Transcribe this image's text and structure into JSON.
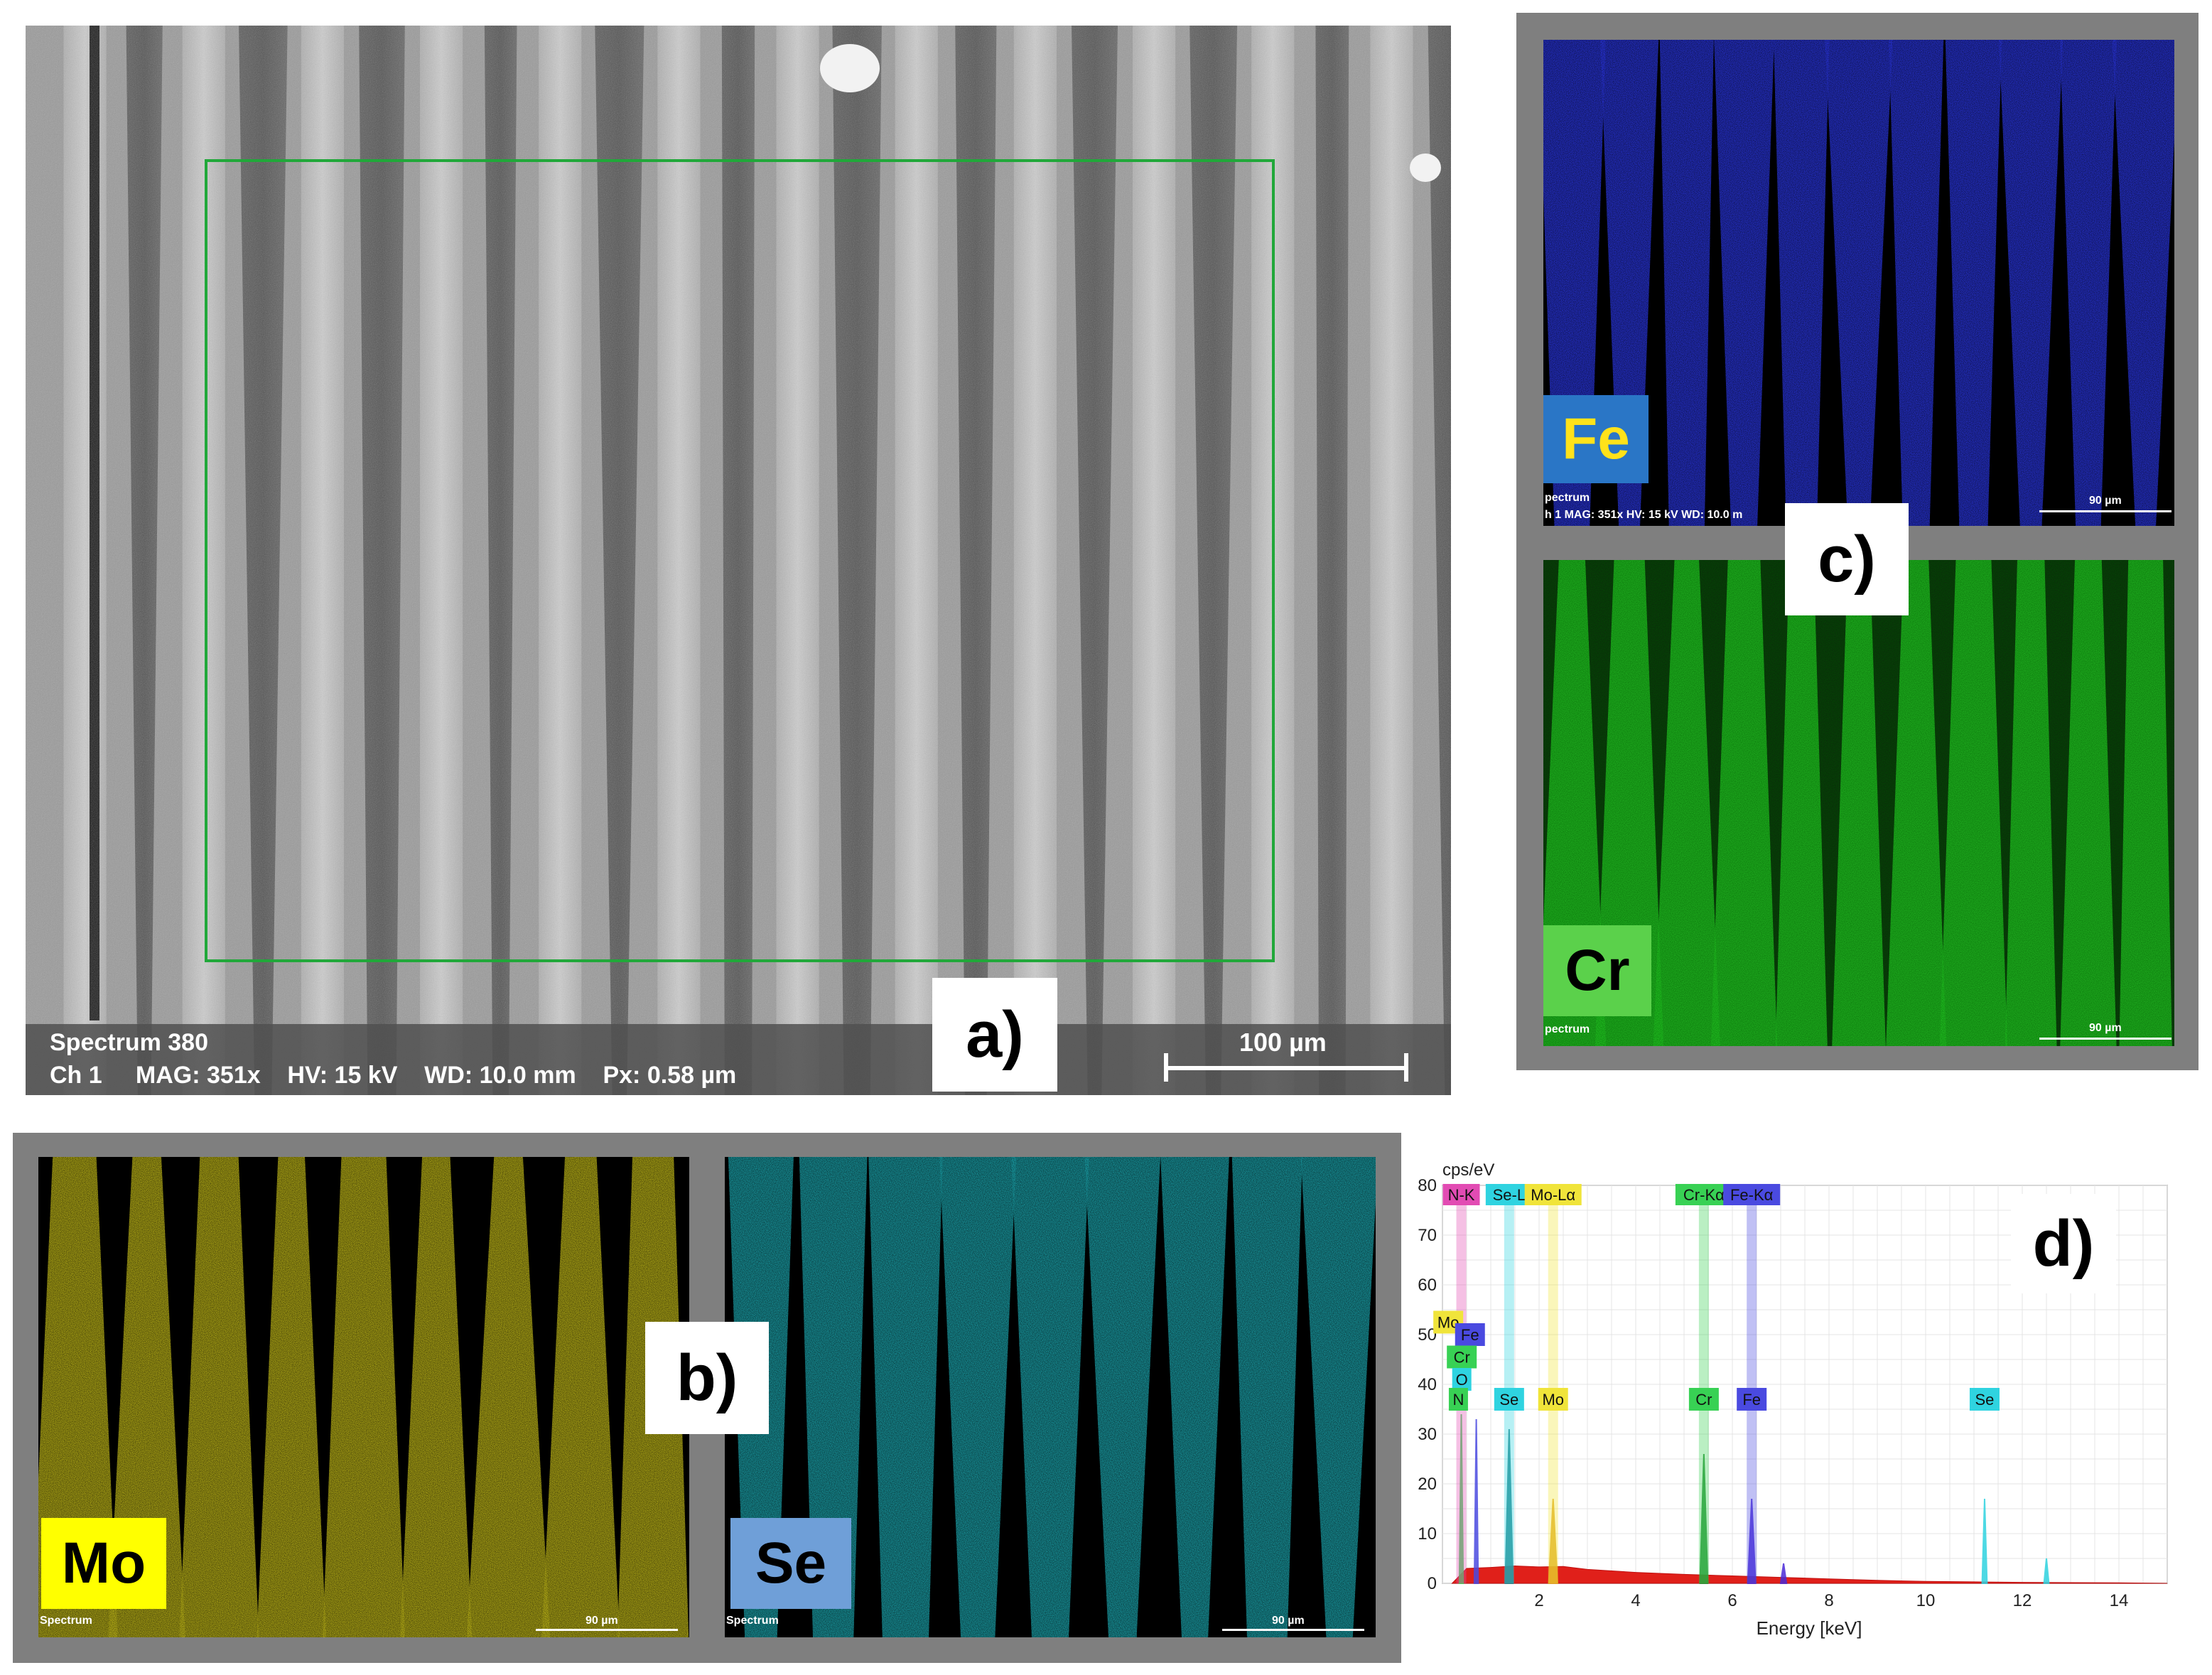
{
  "panel_a": {
    "label": "a)",
    "spectrum": "Spectrum 380",
    "info": "Ch 1     MAG: 351x    HV: 15 kV    WD: 10.0 mm    Px: 0.58 µm",
    "scale": "100 µm",
    "roi_color": "#21a83a"
  },
  "panel_c": {
    "label": "c)",
    "fe": {
      "element": "Fe",
      "color": "#2f3dff",
      "tag_bg": "#2a76c6",
      "tag_fg": "#ffe21a",
      "footer1": "pectrum",
      "footer2": "h 1   MAG: 351x   HV: 15 kV   WD: 10.0 m",
      "scale": "90 µm"
    },
    "cr": {
      "element": "Cr",
      "color": "#25c525",
      "tag_bg": "#5bd14b",
      "tag_fg": "#000000",
      "footer1": "pectrum",
      "scale": "90 µm"
    }
  },
  "panel_b": {
    "label": "b)",
    "mo": {
      "element": "Mo",
      "color": "#ddd31b",
      "tag_bg": "#ffff00",
      "tag_fg": "#000000",
      "footer": "Spectrum",
      "scale": "90 µm"
    },
    "se": {
      "element": "Se",
      "color": "#1fbcc6",
      "tag_bg": "#6f9fd8",
      "tag_fg": "#000000",
      "footer": "Spectrum",
      "scale": "90 µm"
    }
  },
  "panel_d": {
    "label": "d)",
    "chart_data": {
      "type": "line",
      "ylabel": "cps/eV",
      "xlabel": "Energy [keV]",
      "xlim": [
        0,
        15
      ],
      "ylim": [
        0,
        80
      ],
      "xticks": [
        "2",
        "4",
        "6",
        "8",
        "10",
        "12",
        "14"
      ],
      "yticks": [
        "0",
        "10",
        "20",
        "30",
        "40",
        "50",
        "60",
        "70",
        "80"
      ],
      "grid": true,
      "top_labels": [
        {
          "text": "N-K",
          "x": 0.39,
          "color": "#e24bb3"
        },
        {
          "text": "Se-L",
          "x": 1.38,
          "color": "#2fd3e0"
        },
        {
          "text": "Mo-Lα",
          "x": 2.29,
          "color": "#f0e43a"
        },
        {
          "text": "Cr-Kα",
          "x": 5.41,
          "color": "#38d154"
        },
        {
          "text": "Fe-Kα",
          "x": 6.4,
          "color": "#4a4ae0"
        }
      ],
      "peak_labels": [
        {
          "text": "Mo",
          "x": 0.12,
          "y": 52.5,
          "color": "#f0e43a"
        },
        {
          "text": "Fe",
          "x": 0.57,
          "y": 50,
          "color": "#4a4ae0"
        },
        {
          "text": "Cr",
          "x": 0.4,
          "y": 45.5,
          "color": "#38d154"
        },
        {
          "text": "O",
          "x": 0.4,
          "y": 41,
          "color": "#2fd3e0"
        },
        {
          "text": "N",
          "x": 0.33,
          "y": 37,
          "color": "#38d154"
        },
        {
          "text": "Se",
          "x": 1.38,
          "y": 37,
          "color": "#2fd3e0"
        },
        {
          "text": "Mo",
          "x": 2.29,
          "y": 37,
          "color": "#f0e43a"
        },
        {
          "text": "Cr",
          "x": 5.41,
          "y": 37,
          "color": "#38d154"
        },
        {
          "text": "Fe",
          "x": 6.4,
          "y": 37,
          "color": "#4a4ae0"
        },
        {
          "text": "Se",
          "x": 11.22,
          "y": 37,
          "color": "#2fd3e0"
        }
      ],
      "series": [
        {
          "label": "N",
          "color": "#38d154",
          "points": [
            [
              0.35,
              0
            ],
            [
              0.39,
              34
            ],
            [
              0.43,
              0
            ]
          ]
        },
        {
          "label": "Fe-L",
          "color": "#4a4ae0",
          "points": [
            [
              0.66,
              0
            ],
            [
              0.7,
              33
            ],
            [
              0.74,
              0
            ]
          ]
        },
        {
          "label": "Se-L",
          "color": "#1f7f88",
          "points": [
            [
              1.3,
              0
            ],
            [
              1.38,
              31
            ],
            [
              1.46,
              0
            ]
          ]
        },
        {
          "label": "Mo-L",
          "color": "#e0a81f",
          "points": [
            [
              2.2,
              0
            ],
            [
              2.29,
              17
            ],
            [
              2.38,
              0
            ]
          ]
        },
        {
          "label": "Cr-Ka",
          "color": "#1f8f2f",
          "points": [
            [
              5.33,
              0
            ],
            [
              5.41,
              26
            ],
            [
              5.49,
              0
            ]
          ]
        },
        {
          "label": "Fe-Ka",
          "color": "#4a2ad8",
          "points": [
            [
              6.32,
              0
            ],
            [
              6.4,
              17
            ],
            [
              6.48,
              0
            ]
          ]
        },
        {
          "label": "Fe-Kb",
          "color": "#4a2ad8",
          "points": [
            [
              7.0,
              0
            ],
            [
              7.06,
              4
            ],
            [
              7.12,
              0
            ]
          ]
        },
        {
          "label": "Se-Ka",
          "color": "#2fd3e0",
          "points": [
            [
              11.17,
              0
            ],
            [
              11.22,
              17
            ],
            [
              11.27,
              0
            ]
          ]
        },
        {
          "label": "Se-Kb",
          "color": "#2fd3e0",
          "points": [
            [
              12.45,
              0
            ],
            [
              12.5,
              5
            ],
            [
              12.55,
              0
            ]
          ]
        }
      ],
      "background": [
        [
          0.2,
          0
        ],
        [
          0.5,
          3
        ],
        [
          1.0,
          3.2
        ],
        [
          1.5,
          3.5
        ],
        [
          2.0,
          3.3
        ],
        [
          2.5,
          3.4
        ],
        [
          3.0,
          2.8
        ],
        [
          4.0,
          2.2
        ],
        [
          5.0,
          1.8
        ],
        [
          6.0,
          1.5
        ],
        [
          7.0,
          1.2
        ],
        [
          8.0,
          0.9
        ],
        [
          9.0,
          0.6
        ],
        [
          10.0,
          0.4
        ],
        [
          11.0,
          0.3
        ],
        [
          12.0,
          0.2
        ],
        [
          14.0,
          0.1
        ],
        [
          15.0,
          0
        ]
      ]
    }
  }
}
